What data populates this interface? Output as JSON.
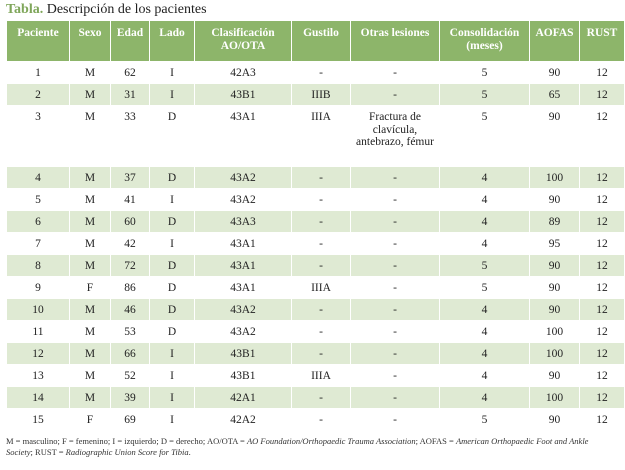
{
  "caption": {
    "label": "Tabla.",
    "text": "Descripción de los pacientes"
  },
  "table": {
    "headers": [
      "Paciente",
      "Sexo",
      "Edad",
      "Lado",
      "Clasificación AO/OTA",
      "Gustilo",
      "Otras lesiones",
      "Consolidación (meses)",
      "AOFAS",
      "RUST"
    ],
    "rows": [
      [
        "1",
        "M",
        "62",
        "I",
        "42A3",
        "-",
        "-",
        "5",
        "90",
        "12"
      ],
      [
        "2",
        "M",
        "31",
        "I",
        "43B1",
        "IIIB",
        "-",
        "5",
        "65",
        "12"
      ],
      [
        "3",
        "M",
        "33",
        "D",
        "43A1",
        "IIIA",
        "Fractura de clavícula, antebrazo, fémur",
        "5",
        "90",
        "12"
      ],
      [
        "4",
        "M",
        "37",
        "D",
        "43A2",
        "-",
        "-",
        "4",
        "100",
        "12"
      ],
      [
        "5",
        "M",
        "41",
        "I",
        "43A2",
        "-",
        "-",
        "4",
        "90",
        "12"
      ],
      [
        "6",
        "M",
        "60",
        "D",
        "43A3",
        "-",
        "-",
        "4",
        "89",
        "12"
      ],
      [
        "7",
        "M",
        "42",
        "I",
        "43A1",
        "-",
        "-",
        "4",
        "95",
        "12"
      ],
      [
        "8",
        "M",
        "72",
        "D",
        "43A1",
        "-",
        "-",
        "5",
        "90",
        "12"
      ],
      [
        "9",
        "F",
        "86",
        "D",
        "43A1",
        "IIIA",
        "-",
        "5",
        "90",
        "12"
      ],
      [
        "10",
        "M",
        "46",
        "D",
        "43A2",
        "-",
        "-",
        "4",
        "90",
        "12"
      ],
      [
        "11",
        "M",
        "53",
        "D",
        "43A2",
        "-",
        "-",
        "4",
        "100",
        "12"
      ],
      [
        "12",
        "M",
        "66",
        "I",
        "43B1",
        "-",
        "-",
        "4",
        "100",
        "12"
      ],
      [
        "13",
        "M",
        "52",
        "I",
        "43B1",
        "IIIA",
        "-",
        "4",
        "90",
        "12"
      ],
      [
        "14",
        "M",
        "39",
        "I",
        "42A1",
        "-",
        "-",
        "4",
        "100",
        "12"
      ],
      [
        "15",
        "F",
        "69",
        "I",
        "42A2",
        "-",
        "-",
        "5",
        "90",
        "12"
      ]
    ]
  },
  "footnote": {
    "part1": "M = masculino; F = femenino; I = izquierdo; D = derecho; AO/OTA = ",
    "ao_name": "AO Foundation/Orthopaedic Trauma Association",
    "part2": "; AOFAS = ",
    "aofas_name": "American Orthopaedic Foot and Ankle Society",
    "part3": "; RUST = ",
    "rust_name": "Radiographic Union Score for Tibia",
    "part4": "."
  },
  "colors": {
    "header_bg": "#8db56a",
    "stripe_bg": "#dfead3",
    "caption_label": "#7fa65a"
  }
}
